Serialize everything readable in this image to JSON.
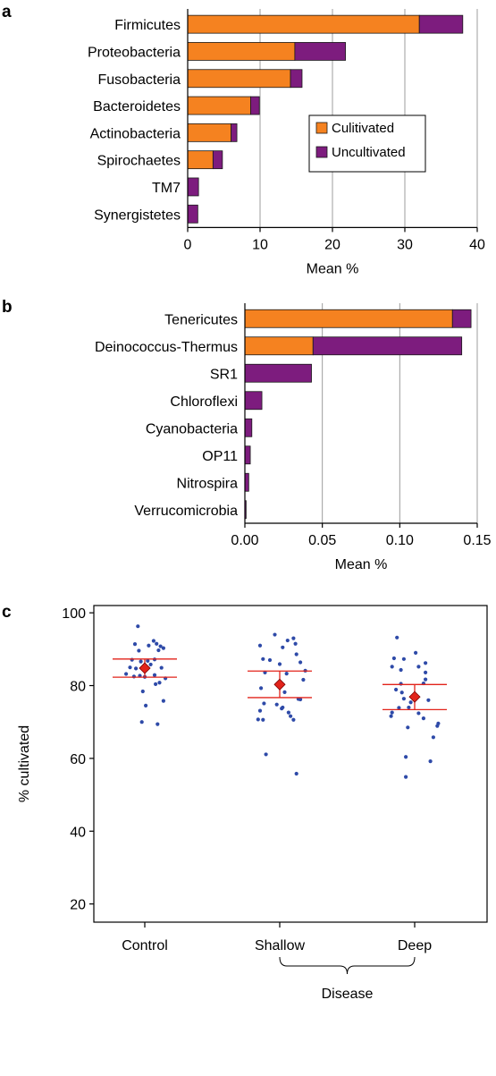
{
  "colors": {
    "cultivated": "#f58220",
    "uncultivated": "#7d1c7e",
    "points": "#2e4aa8",
    "mean": "#e2231a",
    "grid": "#9c9c9c"
  },
  "chart_data": [
    {
      "panel": "a",
      "type": "bar",
      "orientation": "horizontal",
      "stacked": true,
      "categories": [
        "Firmicutes",
        "Proteobacteria",
        "Fusobacteria",
        "Bacteroidetes",
        "Actinobacteria",
        "Spirochaetes",
        "TM7",
        "Synergistetes"
      ],
      "series": [
        {
          "name": "Culitivated",
          "values": [
            32.0,
            14.8,
            14.2,
            8.7,
            6.0,
            3.5,
            0.0,
            0.0
          ]
        },
        {
          "name": "Uncultivated",
          "values": [
            6.0,
            7.0,
            1.6,
            1.2,
            0.8,
            1.3,
            1.5,
            1.4
          ]
        }
      ],
      "xlabel": "Mean %",
      "xlim": [
        0,
        40
      ],
      "xticks": [
        0,
        10,
        20,
        30,
        40
      ],
      "grid": "vertical",
      "legend": "right"
    },
    {
      "panel": "b",
      "type": "bar",
      "orientation": "horizontal",
      "stacked": true,
      "categories": [
        "Tenericutes",
        "Deinococcus-Thermus",
        "SR1",
        "Chloroflexi",
        "Cyanobacteria",
        "OP11",
        "Nitrospira",
        "Verrucomicrobia"
      ],
      "series": [
        {
          "name": "Culitivated",
          "values": [
            0.134,
            0.044,
            0.0,
            0.0,
            0.0,
            0.0,
            0.0,
            0.0
          ]
        },
        {
          "name": "Uncultivated",
          "values": [
            0.012,
            0.096,
            0.043,
            0.011,
            0.0045,
            0.0035,
            0.0025,
            0.0008
          ]
        }
      ],
      "xlabel": "Mean %",
      "xlim": [
        0,
        0.15
      ],
      "xticks": [
        "0.00",
        "0.05",
        "0.10",
        "0.15"
      ],
      "grid": "vertical"
    },
    {
      "panel": "c",
      "type": "scatter",
      "categories": [
        "Control",
        "Shallow",
        "Deep"
      ],
      "ylabel": "% cultivated",
      "ylim": [
        15,
        102
      ],
      "yticks": [
        20,
        40,
        60,
        80,
        100
      ],
      "bracket_label": "Disease",
      "groups": [
        {
          "name": "Control",
          "mean": 84.8,
          "ci_low": 82.3,
          "ci_high": 87.3,
          "points": [
            [
              -0.07,
              96.3
            ],
            [
              -0.1,
              91.4
            ],
            [
              0.09,
              92.3
            ],
            [
              0.12,
              91.5
            ],
            [
              0.04,
              91.0
            ],
            [
              0.16,
              90.8
            ],
            [
              0.19,
              90.3
            ],
            [
              0.14,
              89.7
            ],
            [
              -0.06,
              89.6
            ],
            [
              -0.13,
              87.1
            ],
            [
              0.03,
              86.8
            ],
            [
              0.1,
              87.2
            ],
            [
              -0.04,
              86.6
            ],
            [
              0.06,
              85.8
            ],
            [
              -0.15,
              85.0
            ],
            [
              -0.09,
              84.7
            ],
            [
              0.17,
              84.9
            ],
            [
              -0.19,
              83.2
            ],
            [
              -0.05,
              82.7
            ],
            [
              0.0,
              82.4
            ],
            [
              0.1,
              82.9
            ],
            [
              -0.11,
              82.5
            ],
            [
              0.21,
              82.0
            ],
            [
              0.11,
              80.4
            ],
            [
              0.15,
              80.8
            ],
            [
              -0.02,
              78.4
            ],
            [
              0.01,
              74.5
            ],
            [
              0.19,
              75.8
            ],
            [
              -0.03,
              70.0
            ],
            [
              0.13,
              69.4
            ]
          ]
        },
        {
          "name": "Shallow",
          "mean": 80.3,
          "ci_low": 76.7,
          "ci_high": 84.0,
          "points": [
            [
              -0.05,
              94.0
            ],
            [
              0.14,
              93.0
            ],
            [
              0.08,
              92.4
            ],
            [
              0.16,
              91.5
            ],
            [
              -0.2,
              91.0
            ],
            [
              0.03,
              90.5
            ],
            [
              0.17,
              88.6
            ],
            [
              -0.17,
              87.3
            ],
            [
              -0.1,
              87.0
            ],
            [
              0.21,
              86.4
            ],
            [
              0.0,
              85.9
            ],
            [
              0.26,
              84.1
            ],
            [
              -0.15,
              83.6
            ],
            [
              0.07,
              83.3
            ],
            [
              0.24,
              81.6
            ],
            [
              -0.19,
              79.3
            ],
            [
              0.05,
              78.2
            ],
            [
              0.21,
              76.2
            ],
            [
              0.19,
              76.3
            ],
            [
              -0.16,
              75.1
            ],
            [
              -0.03,
              74.8
            ],
            [
              0.03,
              74.0
            ],
            [
              0.02,
              73.7
            ],
            [
              -0.2,
              73.1
            ],
            [
              0.09,
              72.6
            ],
            [
              0.11,
              71.6
            ],
            [
              -0.22,
              70.7
            ],
            [
              -0.17,
              70.6
            ],
            [
              0.14,
              70.6
            ],
            [
              -0.14,
              61.1
            ],
            [
              0.17,
              55.8
            ]
          ]
        },
        {
          "name": "Deep",
          "mean": 76.9,
          "ci_low": 73.4,
          "ci_high": 80.3,
          "points": [
            [
              -0.18,
              93.2
            ],
            [
              0.01,
              89.0
            ],
            [
              -0.21,
              87.5
            ],
            [
              -0.11,
              87.3
            ],
            [
              -0.23,
              85.2
            ],
            [
              0.04,
              85.2
            ],
            [
              0.11,
              86.2
            ],
            [
              -0.14,
              84.3
            ],
            [
              0.11,
              83.6
            ],
            [
              0.11,
              81.7
            ],
            [
              0.09,
              80.6
            ],
            [
              -0.14,
              80.5
            ],
            [
              -0.19,
              78.9
            ],
            [
              -0.13,
              78.1
            ],
            [
              -0.11,
              76.4
            ],
            [
              0.14,
              76.0
            ],
            [
              -0.04,
              75.4
            ],
            [
              -0.06,
              74.0
            ],
            [
              -0.16,
              73.9
            ],
            [
              -0.23,
              72.6
            ],
            [
              0.04,
              72.4
            ],
            [
              -0.24,
              71.6
            ],
            [
              0.09,
              71.0
            ],
            [
              0.24,
              69.6
            ],
            [
              -0.07,
              68.5
            ],
            [
              0.23,
              68.9
            ],
            [
              0.19,
              65.8
            ],
            [
              -0.09,
              60.4
            ],
            [
              0.16,
              59.2
            ],
            [
              -0.09,
              54.9
            ]
          ]
        }
      ]
    }
  ]
}
